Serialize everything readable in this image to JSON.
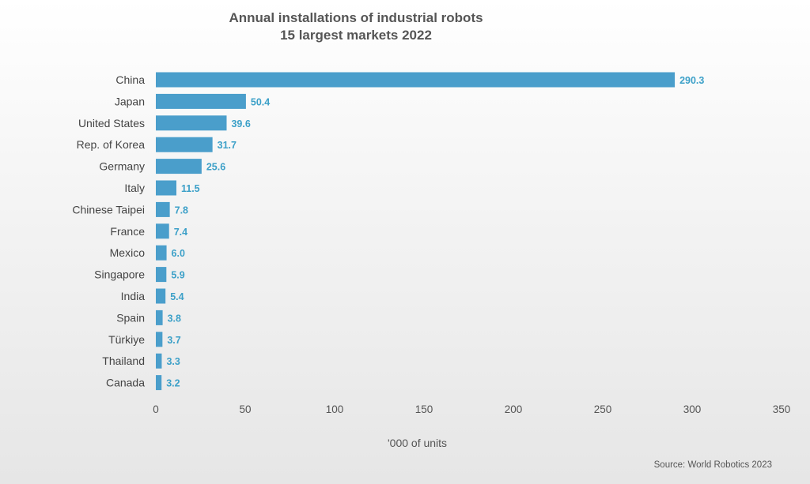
{
  "chart_data": {
    "type": "bar",
    "orientation": "horizontal",
    "title": "Annual installations of industrial robots",
    "subtitle": "15 largest markets 2022",
    "categories": [
      "China",
      "Japan",
      "United States",
      "Rep. of Korea",
      "Germany",
      "Italy",
      "Chinese Taipei",
      "France",
      "Mexico",
      "Singapore",
      "India",
      "Spain",
      "Türkiye",
      "Thailand",
      "Canada"
    ],
    "values": [
      290.3,
      50.4,
      39.6,
      31.7,
      25.6,
      11.5,
      7.8,
      7.4,
      6.0,
      5.9,
      5.4,
      3.8,
      3.7,
      3.3,
      3.2
    ],
    "value_labels": [
      "290.3",
      "50.4",
      "39.6",
      "31.7",
      "25.6",
      "11.5",
      "7.8",
      "7.4",
      "6.0",
      "5.9",
      "5.4",
      "3.8",
      "3.7",
      "3.3",
      "3.2"
    ],
    "xlabel": "'000 of units",
    "ylabel": "",
    "xlim": [
      0,
      350
    ],
    "x_ticks": [
      "0",
      "50",
      "100",
      "150",
      "200",
      "250",
      "300",
      "350"
    ],
    "grid": false,
    "legend": "none",
    "bar_color": "#4a9ecb",
    "label_color": "#3ca0c8",
    "source": "Source: World Robotics 2023"
  }
}
